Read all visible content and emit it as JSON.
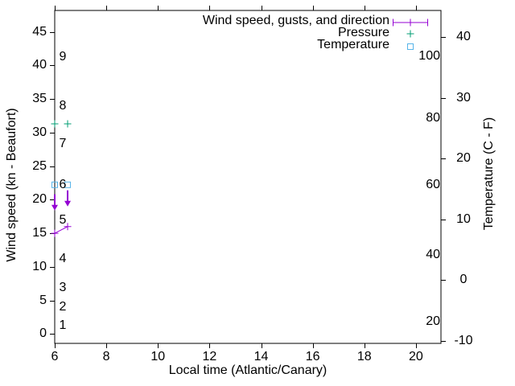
{
  "figure": {
    "background": "#ffffff",
    "axis_color": "#000000",
    "text_color": "#000000"
  },
  "chart_data": {
    "type": "line",
    "title": "",
    "xlabel": "Local time (Atlantic/Canary)",
    "ylabel_left": "Wind speed (kn - Beaufort)",
    "ylabel_right": "Temperature (C - F)",
    "grid": false,
    "xlim": [
      6,
      20.97
    ],
    "ylim_left": [
      -1.4,
      48.2
    ],
    "ylim_right": [
      -10.4,
      44.4
    ],
    "x_ticks": [
      {
        "label": "6",
        "v": 6
      },
      {
        "label": "8",
        "v": 8
      },
      {
        "label": "10",
        "v": 10
      },
      {
        "label": "12",
        "v": 12
      },
      {
        "label": "14",
        "v": 14
      },
      {
        "label": "16",
        "v": 16
      },
      {
        "label": "18",
        "v": 18
      },
      {
        "label": "20",
        "v": 20
      }
    ],
    "y_left_ticks": [
      {
        "label": "0",
        "v": 0
      },
      {
        "label": "5",
        "v": 5
      },
      {
        "label": "10",
        "v": 10
      },
      {
        "label": "15",
        "v": 15
      },
      {
        "label": "20",
        "v": 20
      },
      {
        "label": "25",
        "v": 25
      },
      {
        "label": "30",
        "v": 30
      },
      {
        "label": "35",
        "v": 35
      },
      {
        "label": "40",
        "v": 40
      },
      {
        "label": "45",
        "v": 45
      }
    ],
    "y_right_ticks": [
      {
        "label": "-10",
        "v": -10
      },
      {
        "label": "0",
        "v": 0
      },
      {
        "label": "10",
        "v": 10
      },
      {
        "label": "20",
        "v": 20
      },
      {
        "label": "30",
        "v": 30
      },
      {
        "label": "40",
        "v": 40
      }
    ],
    "beaufort_scale_labels": [
      {
        "label": "1",
        "kn": 1.2
      },
      {
        "label": "2",
        "kn": 4.0
      },
      {
        "label": "3",
        "kn": 6.9
      },
      {
        "label": "4",
        "kn": 11.2
      },
      {
        "label": "5",
        "kn": 16.9
      },
      {
        "label": "6",
        "kn": 22.2
      },
      {
        "label": "7",
        "kn": 28.3
      },
      {
        "label": "8",
        "kn": 33.9
      },
      {
        "label": "9",
        "kn": 41.2
      }
    ],
    "fahrenheit_scale_labels": [
      {
        "label": "20",
        "c_pos": -6.8
      },
      {
        "label": "40",
        "c_pos": 4.2
      },
      {
        "label": "60",
        "c_pos": 15.7
      },
      {
        "label": "80",
        "c_pos": 26.7
      },
      {
        "label": "100",
        "c_pos": 36.9
      }
    ],
    "series": [
      {
        "name": "Wind speed, gusts, and direction",
        "axis": "left",
        "color": "#9400d3",
        "marker": "plus",
        "line": true,
        "points": [
          {
            "x": 6,
            "y": 15
          },
          {
            "x": 6.5,
            "y": 16
          }
        ],
        "gust_arrows": [
          {
            "x": 6,
            "y_start": 20.8,
            "y_tip": 18.4,
            "direction": "down"
          },
          {
            "x": 6.5,
            "y_start": 21.4,
            "y_tip": 19.0,
            "direction": "down"
          }
        ]
      },
      {
        "name": "Pressure",
        "axis": "left",
        "color": "#009e73",
        "marker": "plus",
        "line": false,
        "points": [
          {
            "x": 6,
            "y": 31.3
          },
          {
            "x": 6.5,
            "y": 31.3
          }
        ]
      },
      {
        "name": "Temperature",
        "axis": "right",
        "color": "#56b4e9",
        "marker": "square",
        "line": false,
        "points": [
          {
            "x": 6,
            "y": 15.7
          },
          {
            "x": 6.5,
            "y": 15.7
          }
        ]
      }
    ],
    "legend": {
      "position": "top-right-inside",
      "entries": [
        {
          "label": "Wind speed, gusts, and direction",
          "sample": "errorbar",
          "color": "#9400d3"
        },
        {
          "label": "Pressure",
          "sample": "plus",
          "color": "#009e73"
        },
        {
          "label": "Temperature",
          "sample": "square",
          "color": "#56b4e9"
        }
      ]
    }
  }
}
